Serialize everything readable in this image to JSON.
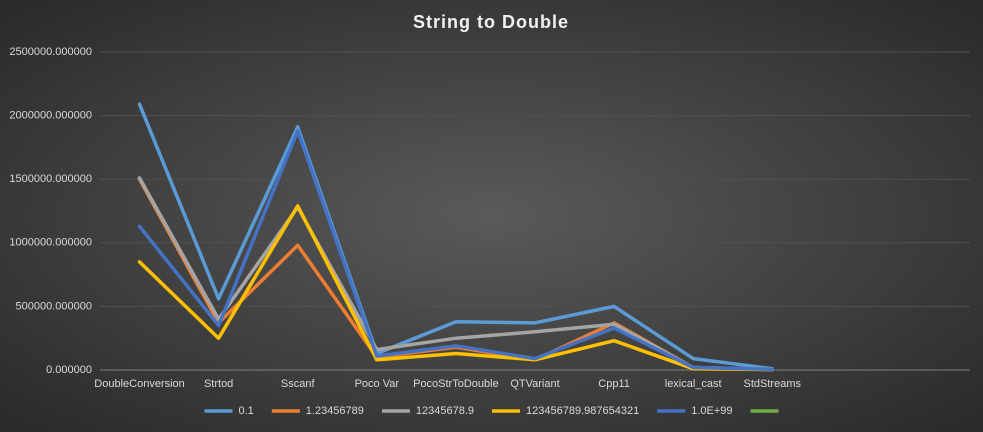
{
  "chart_data": {
    "type": "line",
    "title": "String to Double",
    "categories": [
      "DoubleConversion",
      "Strtod",
      "Sscanf",
      "Poco Var",
      "PocoStrToDouble",
      "QTVariant",
      "Cpp11",
      "lexical_cast",
      "StdStreams",
      null,
      null
    ],
    "series": [
      {
        "name": "0.1",
        "color": "#5b9bd5",
        "values": [
          2090000,
          560000,
          1910000,
          130000,
          380000,
          370000,
          500000,
          90000,
          10000,
          null,
          null
        ]
      },
      {
        "name": "1.23456789",
        "color": "#ed7d31",
        "values": [
          1500000,
          370000,
          980000,
          100000,
          180000,
          80000,
          370000,
          20000,
          5000,
          null,
          null
        ]
      },
      {
        "name": "12345678.9",
        "color": "#a5a5a5",
        "values": [
          1510000,
          400000,
          1280000,
          160000,
          250000,
          300000,
          360000,
          20000,
          5000,
          null,
          null
        ]
      },
      {
        "name": "123456789.987654321",
        "color": "#ffc000",
        "values": [
          850000,
          250000,
          1290000,
          80000,
          130000,
          80000,
          230000,
          10000,
          3000,
          null,
          null
        ]
      },
      {
        "name": "1.0E+99",
        "color": "#4472c4",
        "values": [
          1130000,
          350000,
          1880000,
          110000,
          190000,
          90000,
          330000,
          20000,
          5000,
          null,
          null
        ]
      },
      {
        "name": null,
        "color": "#70ad47",
        "values": [
          null,
          null,
          null,
          null,
          null,
          null,
          null,
          null,
          null,
          null,
          null
        ]
      }
    ],
    "ylim": [
      0,
      2500000
    ],
    "yticks": [
      {
        "value": 0,
        "label": "0.000000"
      },
      {
        "value": 500000,
        "label": "500000.000000"
      },
      {
        "value": 1000000,
        "label": "1000000.000000"
      },
      {
        "value": 1500000,
        "label": "1500000.000000"
      },
      {
        "value": 2000000,
        "label": "2000000.000000"
      },
      {
        "value": 2500000,
        "label": "2500000.000000"
      }
    ],
    "grid": true,
    "legend": "bottom"
  }
}
